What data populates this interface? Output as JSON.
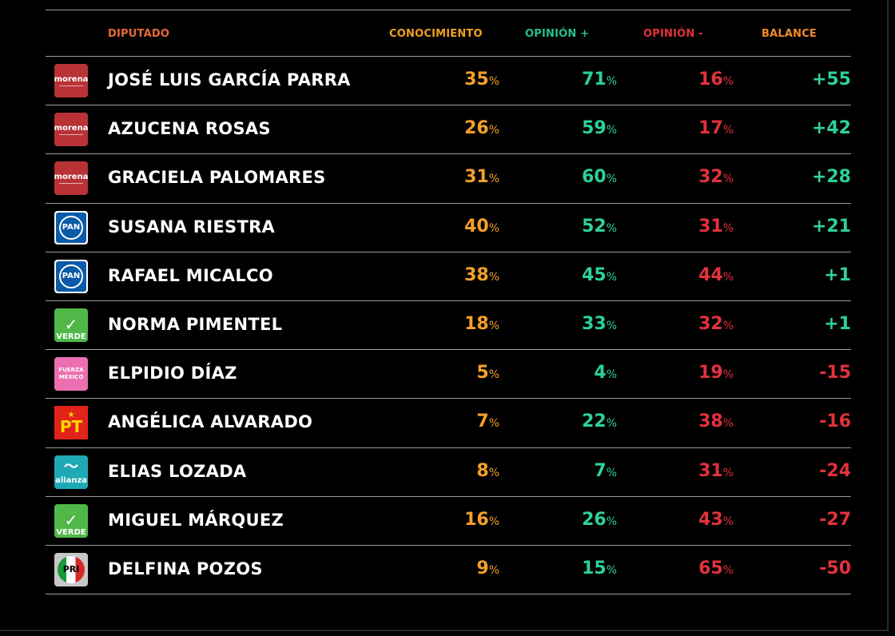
{
  "colors": {
    "conocimiento": "#f5a02a",
    "opinion_pos": "#2ed19a",
    "opinion_neg": "#e3313d",
    "positive_balance": "#2ed19a",
    "negative_balance": "#e3313d",
    "header_diputado": "#e8693a",
    "header_balance": "#f08a2a"
  },
  "chart_data": {
    "type": "table",
    "columns": [
      "DIPUTADO",
      "CONOCIMIENTO",
      "OPINIÓN +",
      "OPINIÓN -",
      "BALANCE"
    ],
    "percent_sign": "%",
    "rows": [
      {
        "party": "morena",
        "logo_text": "morena",
        "name": "JOSÉ LUIS GARCÍA PARRA",
        "conocimiento": "35",
        "opinion_pos": "71",
        "opinion_neg": "16",
        "balance": "+55"
      },
      {
        "party": "morena",
        "logo_text": "morena",
        "name": "AZUCENA ROSAS",
        "conocimiento": "26",
        "opinion_pos": "59",
        "opinion_neg": "17",
        "balance": "+42"
      },
      {
        "party": "morena",
        "logo_text": "morena",
        "name": "GRACIELA PALOMARES",
        "conocimiento": "31",
        "opinion_pos": "60",
        "opinion_neg": "32",
        "balance": "+28"
      },
      {
        "party": "pan",
        "logo_text": "PAN",
        "name": "SUSANA RIESTRA",
        "conocimiento": "40",
        "opinion_pos": "52",
        "opinion_neg": "31",
        "balance": "+21"
      },
      {
        "party": "pan",
        "logo_text": "PAN",
        "name": "RAFAEL MICALCO",
        "conocimiento": "38",
        "opinion_pos": "45",
        "opinion_neg": "44",
        "balance": "+1"
      },
      {
        "party": "verde",
        "logo_text": "VERDE",
        "name": "NORMA PIMENTEL",
        "conocimiento": "18",
        "opinion_pos": "33",
        "opinion_neg": "32",
        "balance": "+1"
      },
      {
        "party": "fuerza",
        "logo_text": "FUERZA MÉXICO",
        "name": "ELPIDIO DÍAZ",
        "conocimiento": "5",
        "opinion_pos": "4",
        "opinion_neg": "19",
        "balance": "-15"
      },
      {
        "party": "pt",
        "logo_text": "PT",
        "name": "ANGÉLICA ALVARADO",
        "conocimiento": "7",
        "opinion_pos": "22",
        "opinion_neg": "38",
        "balance": "-16"
      },
      {
        "party": "alianza",
        "logo_text": "alianza",
        "name": "ELIAS LOZADA",
        "conocimiento": "8",
        "opinion_pos": "7",
        "opinion_neg": "31",
        "balance": "-24"
      },
      {
        "party": "verde",
        "logo_text": "VERDE",
        "name": "MIGUEL MÁRQUEZ",
        "conocimiento": "16",
        "opinion_pos": "26",
        "opinion_neg": "43",
        "balance": "-27"
      },
      {
        "party": "pri",
        "logo_text": "PRI",
        "name": "DELFINA POZOS",
        "conocimiento": "9",
        "opinion_pos": "15",
        "opinion_neg": "65",
        "balance": "-50"
      }
    ]
  }
}
